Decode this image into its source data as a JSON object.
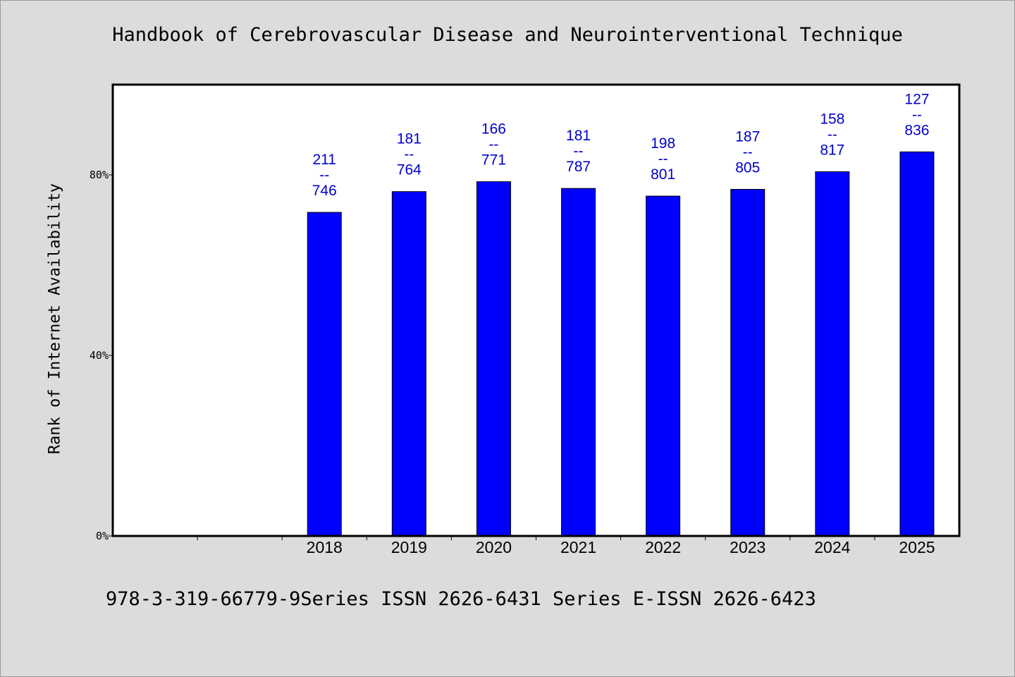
{
  "title": "Handbook of Cerebrovascular Disease and Neurointerventional Technique",
  "footer": "978-3-319-66779-9Series ISSN 2626-6431 Series E-ISSN 2626-6423",
  "colors": {
    "background": "#dcdcdc",
    "plot": "#ffffff",
    "bar": "#0000ff",
    "label": "#0000cd"
  },
  "chart_data": {
    "type": "bar",
    "ylabel": "Rank of Internet Availability",
    "xlabel": "",
    "ylim": [
      0,
      100
    ],
    "yticks": [
      0,
      40,
      80
    ],
    "ytick_labels": [
      "0%",
      "40%",
      "80%"
    ],
    "categories": [
      "",
      "",
      "2018",
      "2019",
      "2020",
      "2021",
      "2022",
      "2023",
      "2024",
      "2025"
    ],
    "values": [
      null,
      null,
      71.7,
      76.3,
      78.5,
      77.0,
      75.3,
      76.8,
      80.7,
      85.1
    ],
    "labels": [
      null,
      null,
      [
        "211",
        "--",
        "746"
      ],
      [
        "181",
        "--",
        "764"
      ],
      [
        "166",
        "--",
        "771"
      ],
      [
        "181",
        "--",
        "787"
      ],
      [
        "198",
        "--",
        "801"
      ],
      [
        "187",
        "--",
        "805"
      ],
      [
        "158",
        "--",
        "817"
      ],
      [
        "127",
        "--",
        "836"
      ]
    ],
    "grid": false,
    "legend": "none"
  }
}
